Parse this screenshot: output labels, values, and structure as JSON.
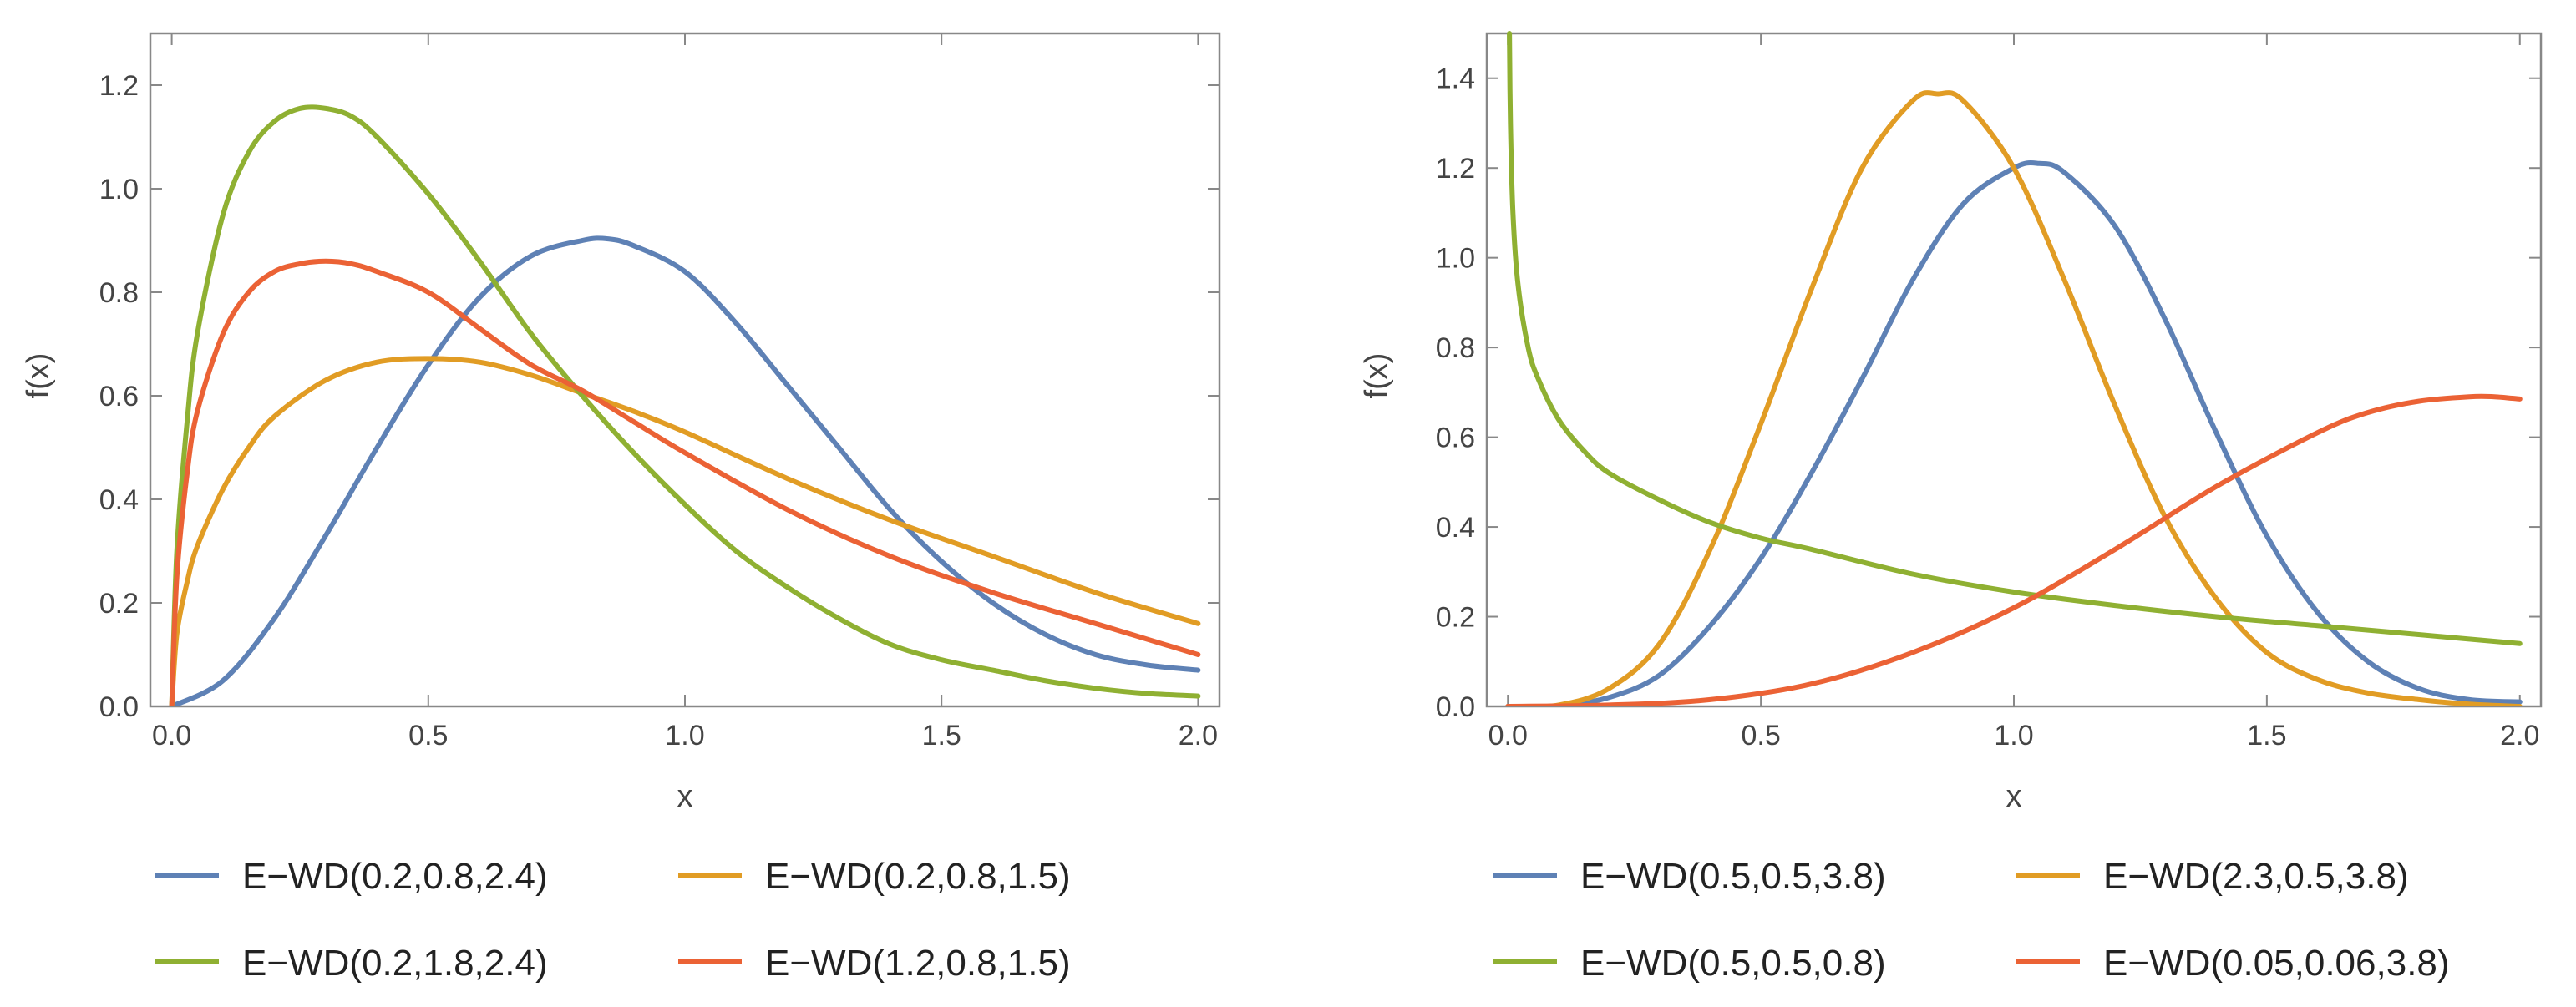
{
  "chart_data": [
    {
      "type": "line",
      "xlabel": "x",
      "ylabel": "f(x)",
      "xlim": [
        0,
        2
      ],
      "ylim": [
        0,
        1.3
      ],
      "xticks": [
        "0.0",
        "0.5",
        "1.0",
        "1.5",
        "2.0"
      ],
      "yticks": [
        "0.0",
        "0.2",
        "0.4",
        "0.6",
        "0.8",
        "1.0",
        "1.2"
      ],
      "legend_position": "bottom",
      "series": [
        {
          "name": "E−WD(0.2,0.8,2.4)",
          "color": "#5e81b5",
          "x": [
            0,
            0.1,
            0.2,
            0.3,
            0.4,
            0.5,
            0.6,
            0.7,
            0.8,
            0.85,
            0.9,
            1.0,
            1.1,
            1.2,
            1.3,
            1.4,
            1.5,
            1.6,
            1.7,
            1.8,
            1.9,
            2.0
          ],
          "y": [
            0,
            0.05,
            0.17,
            0.33,
            0.5,
            0.66,
            0.79,
            0.87,
            0.9,
            0.903,
            0.89,
            0.84,
            0.74,
            0.62,
            0.5,
            0.38,
            0.28,
            0.2,
            0.14,
            0.1,
            0.08,
            0.07
          ]
        },
        {
          "name": "E−WD(0.2,0.8,1.5)",
          "color": "#e19c24",
          "x": [
            0,
            0.01,
            0.03,
            0.05,
            0.1,
            0.15,
            0.2,
            0.3,
            0.4,
            0.5,
            0.6,
            0.7,
            0.8,
            0.9,
            1.0,
            1.2,
            1.4,
            1.6,
            1.8,
            2.0
          ],
          "y": [
            0,
            0.14,
            0.24,
            0.31,
            0.42,
            0.5,
            0.56,
            0.63,
            0.665,
            0.672,
            0.665,
            0.64,
            0.605,
            0.57,
            0.53,
            0.44,
            0.36,
            0.29,
            0.22,
            0.16
          ]
        },
        {
          "name": "E−WD(0.2,1.8,2.4)",
          "color": "#8fb032",
          "x": [
            0,
            0.01,
            0.03,
            0.05,
            0.1,
            0.15,
            0.2,
            0.25,
            0.3,
            0.35,
            0.4,
            0.5,
            0.6,
            0.7,
            0.8,
            0.9,
            1.0,
            1.1,
            1.2,
            1.3,
            1.4,
            1.5,
            1.6,
            1.7,
            1.8,
            1.9,
            2.0
          ],
          "y": [
            0,
            0.3,
            0.55,
            0.72,
            0.95,
            1.07,
            1.13,
            1.155,
            1.155,
            1.14,
            1.1,
            0.99,
            0.86,
            0.72,
            0.6,
            0.49,
            0.39,
            0.3,
            0.23,
            0.17,
            0.12,
            0.09,
            0.07,
            0.05,
            0.035,
            0.025,
            0.02
          ]
        },
        {
          "name": "E−WD(1.2,0.8,1.5)",
          "color": "#eb6235",
          "x": [
            0,
            0.01,
            0.03,
            0.05,
            0.1,
            0.15,
            0.2,
            0.25,
            0.3,
            0.35,
            0.4,
            0.5,
            0.6,
            0.7,
            0.8,
            0.9,
            1.0,
            1.2,
            1.4,
            1.6,
            1.8,
            2.0
          ],
          "y": [
            0,
            0.25,
            0.45,
            0.57,
            0.72,
            0.8,
            0.84,
            0.855,
            0.86,
            0.855,
            0.84,
            0.8,
            0.73,
            0.66,
            0.61,
            0.55,
            0.49,
            0.38,
            0.29,
            0.22,
            0.16,
            0.1
          ]
        }
      ]
    },
    {
      "type": "line",
      "xlabel": "x",
      "ylabel": "f(x)",
      "xlim": [
        0,
        2
      ],
      "ylim": [
        0,
        1.5
      ],
      "xticks": [
        "0.0",
        "0.5",
        "1.0",
        "1.5",
        "2.0"
      ],
      "yticks": [
        "0.0",
        "0.2",
        "0.4",
        "0.6",
        "0.8",
        "1.0",
        "1.2",
        "1.4"
      ],
      "legend_position": "bottom",
      "series": [
        {
          "name": "E−WD(0.5,0.5,3.8)",
          "color": "#5e81b5",
          "x": [
            0,
            0.1,
            0.2,
            0.3,
            0.4,
            0.5,
            0.6,
            0.7,
            0.8,
            0.9,
            1.0,
            1.05,
            1.1,
            1.2,
            1.3,
            1.4,
            1.5,
            1.6,
            1.7,
            1.8,
            1.9,
            2.0
          ],
          "y": [
            0,
            0.001,
            0.02,
            0.07,
            0.18,
            0.33,
            0.52,
            0.73,
            0.95,
            1.12,
            1.2,
            1.21,
            1.19,
            1.07,
            0.86,
            0.61,
            0.38,
            0.21,
            0.1,
            0.04,
            0.015,
            0.01
          ]
        },
        {
          "name": "E−WD(2.3,0.5,3.8)",
          "color": "#e19c24",
          "x": [
            0,
            0.1,
            0.2,
            0.3,
            0.4,
            0.5,
            0.6,
            0.7,
            0.8,
            0.85,
            0.9,
            1.0,
            1.1,
            1.2,
            1.3,
            1.4,
            1.5,
            1.6,
            1.7,
            1.8,
            1.9,
            2.0
          ],
          "y": [
            0,
            0.003,
            0.04,
            0.14,
            0.35,
            0.63,
            0.93,
            1.2,
            1.35,
            1.365,
            1.35,
            1.2,
            0.95,
            0.67,
            0.42,
            0.24,
            0.12,
            0.06,
            0.03,
            0.015,
            0.005,
            0.0
          ]
        },
        {
          "name": "E−WD(0.5,0.5,0.8)",
          "color": "#8fb032",
          "x": [
            0.003,
            0.005,
            0.01,
            0.02,
            0.04,
            0.06,
            0.1,
            0.15,
            0.2,
            0.3,
            0.4,
            0.5,
            0.6,
            0.8,
            1.0,
            1.2,
            1.4,
            1.6,
            1.8,
            2.0
          ],
          "y": [
            1.5,
            1.3,
            1.1,
            0.94,
            0.8,
            0.73,
            0.64,
            0.57,
            0.52,
            0.46,
            0.41,
            0.375,
            0.35,
            0.295,
            0.255,
            0.225,
            0.2,
            0.18,
            0.16,
            0.14
          ]
        },
        {
          "name": "E−WD(0.05,0.06,3.8)",
          "color": "#eb6235",
          "x": [
            0,
            0.2,
            0.4,
            0.6,
            0.8,
            1.0,
            1.2,
            1.4,
            1.6,
            1.7,
            1.8,
            1.9,
            1.95,
            2.0
          ],
          "y": [
            0,
            0.003,
            0.015,
            0.05,
            0.12,
            0.22,
            0.35,
            0.49,
            0.61,
            0.655,
            0.68,
            0.69,
            0.69,
            0.685
          ]
        }
      ]
    }
  ]
}
